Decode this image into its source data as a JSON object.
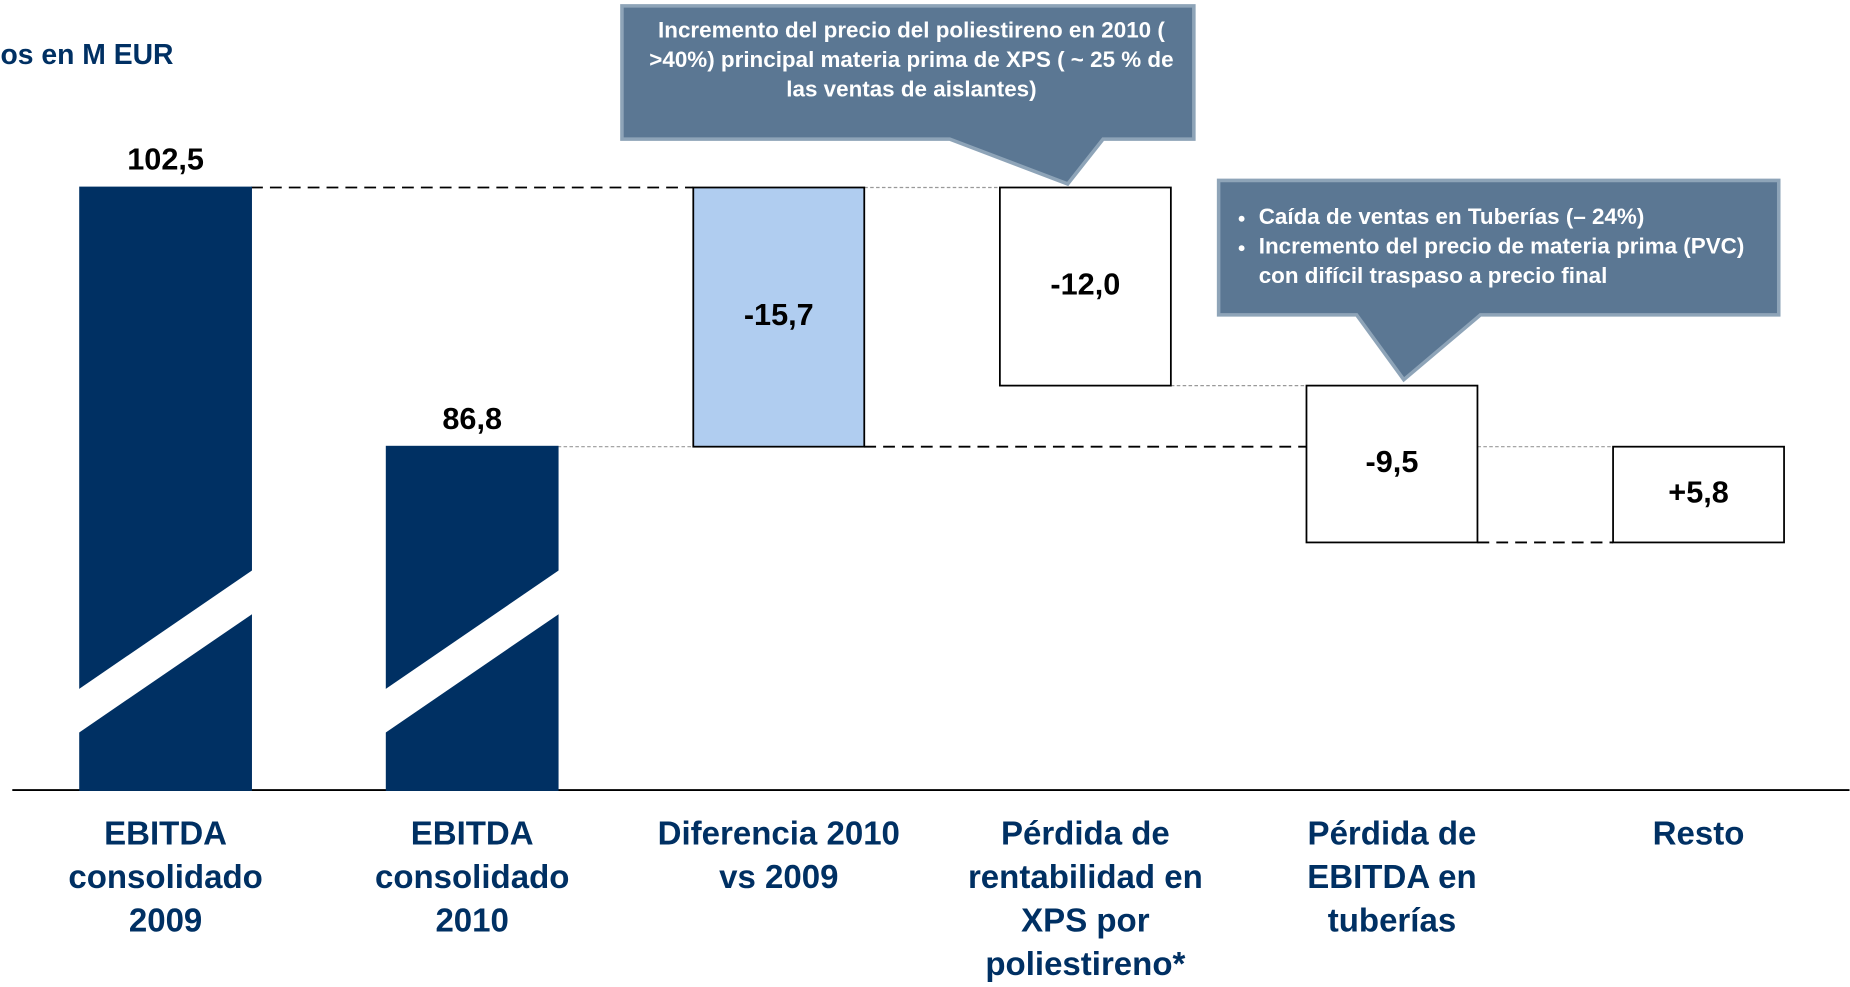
{
  "chart_data": {
    "type": "waterfall",
    "title": "os en M EUR",
    "categories": [
      "EBITDA consolidado 2009",
      "EBITDA consolidado 2010",
      "Diferencia 2010 vs 2009",
      "Pérdida de rentabilidad en XPS por poliestireno*",
      "Pérdida de EBITDA en tuberías",
      "Resto"
    ],
    "values": [
      102.5,
      86.8,
      -15.7,
      -12.0,
      -9.5,
      5.8
    ],
    "value_labels": [
      "102,5",
      "86,8",
      "-15,7",
      "-12,0",
      "-9,5",
      "+5,8"
    ],
    "measure": [
      "total",
      "total",
      "difference",
      "relative",
      "relative",
      "relative"
    ],
    "colors": {
      "total": "#003063",
      "difference": "#b0cdf0",
      "relative": "#ffffff"
    },
    "ylim": [
      66,
      105
    ],
    "broken_axis": true,
    "annotations": [
      {
        "text": "Incremento del precio del poliestireno en 2010 ( >40%) principal materia prima de XPS ( ~ 25 % de las ventas de aislantes)"
      },
      {
        "bullets": [
          "Caída de ventas en Tuberías (– 24%)",
          "Incremento del precio de materia prima (PVC) con difícil traspaso a precio final"
        ]
      }
    ]
  }
}
